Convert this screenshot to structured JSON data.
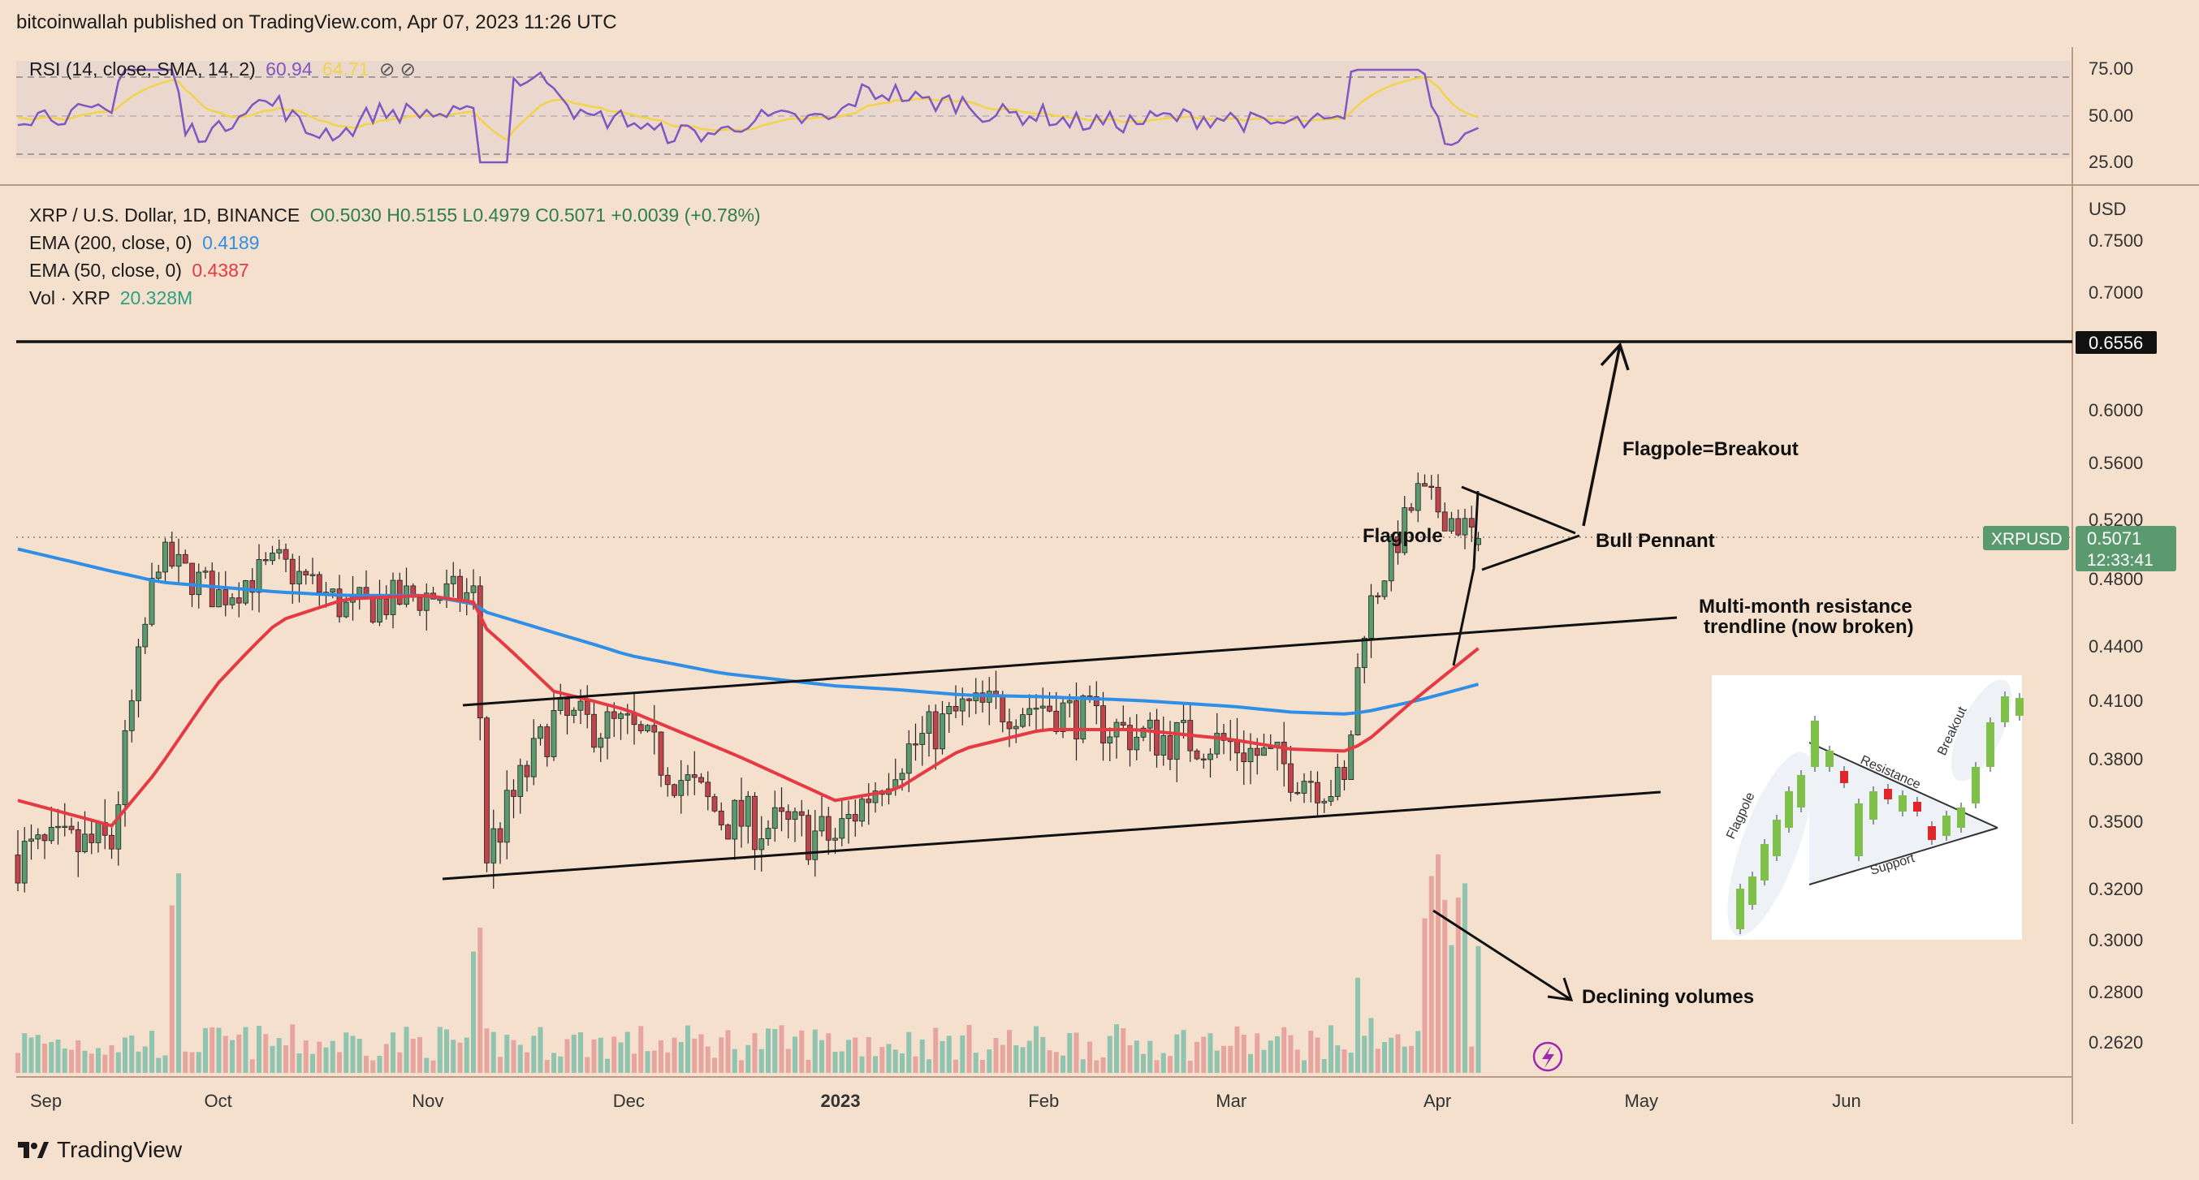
{
  "header": {
    "publisher": "bitcoinwallah published on TradingView.com, Apr 07, 2023 11:26 UTC"
  },
  "footer": {
    "brand": "TradingView"
  },
  "rsi_legend": {
    "label": "RSI (14, close, SMA, 14, 2)",
    "value1": "60.94",
    "value2": "64.71",
    "ticks": [
      "75.00",
      "50.00",
      "25.00"
    ]
  },
  "price_legend": {
    "symbol": "XRP / U.S. Dollar, 1D, BINANCE",
    "ohlc": "O0.5030  H0.5155  L0.4979  C0.5071  +0.0039 (+0.78%)",
    "ema200_label": "EMA (200, close, 0)",
    "ema200_value": "0.4189",
    "ema50_label": "EMA (50, close, 0)",
    "ema50_value": "0.4387",
    "vol_label": "Vol · XRP",
    "vol_value": "20.328M"
  },
  "price_axis": {
    "currency": "USD",
    "ticks": [
      "0.7500",
      "0.7000",
      "0.6000",
      "0.5600",
      "0.5200",
      "0.4800",
      "0.4400",
      "0.4100",
      "0.3800",
      "0.3500",
      "0.3200",
      "0.3000",
      "0.2800",
      "0.2620"
    ],
    "level_tag": "0.6556",
    "symbol_tag": "XRPUSD",
    "price_tag": "0.5071",
    "countdown_tag": "12:33:41"
  },
  "time_axis": [
    "Sep",
    "Oct",
    "Nov",
    "Dec",
    "2023",
    "Feb",
    "Mar",
    "Apr",
    "May",
    "Jun"
  ],
  "annotations": {
    "flagpole_breakout": "Flagpole=Breakout",
    "flagpole": "Flagpole",
    "bull_pennant": "Bull Pennant",
    "resistance_line1": "Multi-month resistance",
    "resistance_line2": "trendline (now broken)",
    "declining_volumes": "Declining volumes"
  },
  "inset": {
    "flagpole": "Flagpole",
    "resistance": "Resistance",
    "support": "Support",
    "breakout": "Breakout"
  },
  "colors": {
    "up": "#5a9a6e",
    "down": "#c0454a",
    "ema200": "#2f8fe6",
    "ema50": "#e53944",
    "sma": "#f2d34a",
    "rsi": "#7e57c2"
  },
  "chart_data": {
    "type": "candlestick",
    "title": "XRP / U.S. Dollar, 1D, BINANCE",
    "xlabel": "",
    "ylabel": "USD",
    "ylim": [
      0.25,
      0.78
    ],
    "x": [
      "2022-09-01",
      "2022-09-15",
      "2022-09-22",
      "2022-10-01",
      "2022-10-10",
      "2022-10-20",
      "2022-11-01",
      "2022-11-08",
      "2022-11-10",
      "2022-11-20",
      "2022-12-01",
      "2022-12-15",
      "2023-01-01",
      "2023-01-10",
      "2023-01-20",
      "2023-02-01",
      "2023-02-15",
      "2023-03-01",
      "2023-03-10",
      "2023-03-18",
      "2023-03-21",
      "2023-03-29",
      "2023-04-07"
    ],
    "series": [
      {
        "name": "XRP / U.S. Dollar",
        "values": [
          0.335,
          0.34,
          0.495,
          0.47,
          0.49,
          0.462,
          0.47,
          0.47,
          0.335,
          0.4,
          0.395,
          0.352,
          0.342,
          0.38,
          0.405,
          0.408,
          0.392,
          0.388,
          0.375,
          0.365,
          0.455,
          0.538,
          0.5071
        ]
      },
      {
        "name": "EMA (200, close, 0)",
        "values": [
          0.5,
          0.485,
          0.478,
          0.475,
          0.472,
          0.47,
          0.47,
          0.465,
          0.46,
          0.448,
          0.435,
          0.425,
          0.418,
          0.416,
          0.413,
          0.412,
          0.41,
          0.407,
          0.404,
          0.403,
          0.404,
          0.41,
          0.4189
        ]
      },
      {
        "name": "EMA (50, close, 0)",
        "values": [
          0.36,
          0.348,
          0.375,
          0.42,
          0.455,
          0.468,
          0.47,
          0.466,
          0.45,
          0.415,
          0.405,
          0.385,
          0.36,
          0.365,
          0.385,
          0.395,
          0.395,
          0.39,
          0.385,
          0.384,
          0.388,
          0.412,
          0.4387
        ]
      }
    ],
    "levels": [
      0.6556
    ],
    "volume_last": "20.328M"
  }
}
